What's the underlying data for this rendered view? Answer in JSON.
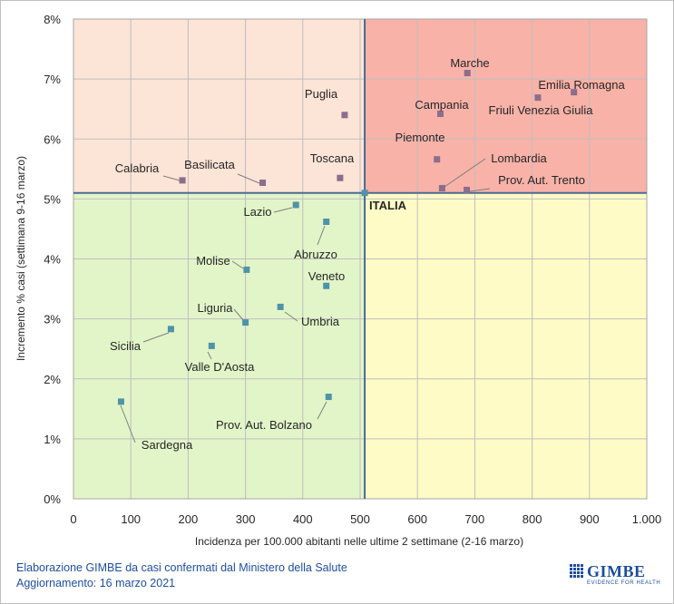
{
  "chart_data": {
    "type": "scatter",
    "xlabel": "Incidenza per 100.000  abitanti nelle ultime 2 settimane (2-16 marzo)",
    "ylabel": "Incremento % casi (settimana 9-16 marzo)",
    "xlim": [
      0,
      1000
    ],
    "ylim": [
      0,
      8
    ],
    "x_ticks": [
      "0",
      "100",
      "200",
      "300",
      "400",
      "500",
      "600",
      "700",
      "800",
      "900",
      "1.000"
    ],
    "y_ticks": [
      "0%",
      "1%",
      "2%",
      "3%",
      "4%",
      "5%",
      "6%",
      "7%",
      "8%"
    ],
    "grid": true,
    "reference": {
      "label": "ITALIA",
      "x": 508,
      "y": 5.1
    },
    "quadrant_colors": {
      "top_left": "#fce4d6",
      "top_right": "#f8b2a8",
      "bottom_left": "#e2f5c8",
      "bottom_right": "#fefbc6"
    },
    "marker_color_high": "#8c6d8c",
    "marker_color_low": "#4f93a8",
    "points": [
      {
        "name": "Marche",
        "x": 687,
        "y": 7.1
      },
      {
        "name": "Emilia Romagna",
        "x": 873,
        "y": 6.78
      },
      {
        "name": "Friuli Venezia Giulia",
        "x": 810,
        "y": 6.69
      },
      {
        "name": "Campania",
        "x": 640,
        "y": 6.42
      },
      {
        "name": "Puglia",
        "x": 473,
        "y": 6.4
      },
      {
        "name": "Piemonte",
        "x": 634,
        "y": 5.66
      },
      {
        "name": "Toscana",
        "x": 465,
        "y": 5.35
      },
      {
        "name": "Calabria",
        "x": 190,
        "y": 5.31
      },
      {
        "name": "Basilicata",
        "x": 330,
        "y": 5.27
      },
      {
        "name": "Lombardia",
        "x": 643,
        "y": 5.18
      },
      {
        "name": "Prov. Aut. Trento",
        "x": 686,
        "y": 5.15
      },
      {
        "name": "Lazio",
        "x": 388,
        "y": 4.9
      },
      {
        "name": "Abruzzo",
        "x": 441,
        "y": 4.62
      },
      {
        "name": "Molise",
        "x": 302,
        "y": 3.82
      },
      {
        "name": "Veneto",
        "x": 441,
        "y": 3.55
      },
      {
        "name": "Umbria",
        "x": 361,
        "y": 3.2
      },
      {
        "name": "Liguria",
        "x": 300,
        "y": 2.94
      },
      {
        "name": "Sicilia",
        "x": 170,
        "y": 2.83
      },
      {
        "name": "Valle D'Aosta",
        "x": 241,
        "y": 2.55
      },
      {
        "name": "Prov. Aut. Bolzano",
        "x": 445,
        "y": 1.7
      },
      {
        "name": "Sardegna",
        "x": 83,
        "y": 1.62
      }
    ]
  },
  "footer": {
    "line1": "Elaborazione GIMBE da casi confermati dal Ministero della Salute",
    "line2": "Aggiornamento: 16 marzo 2021"
  },
  "logo": {
    "word": "GIMBE",
    "tagline": "EVIDENCE FOR HEALTH"
  }
}
